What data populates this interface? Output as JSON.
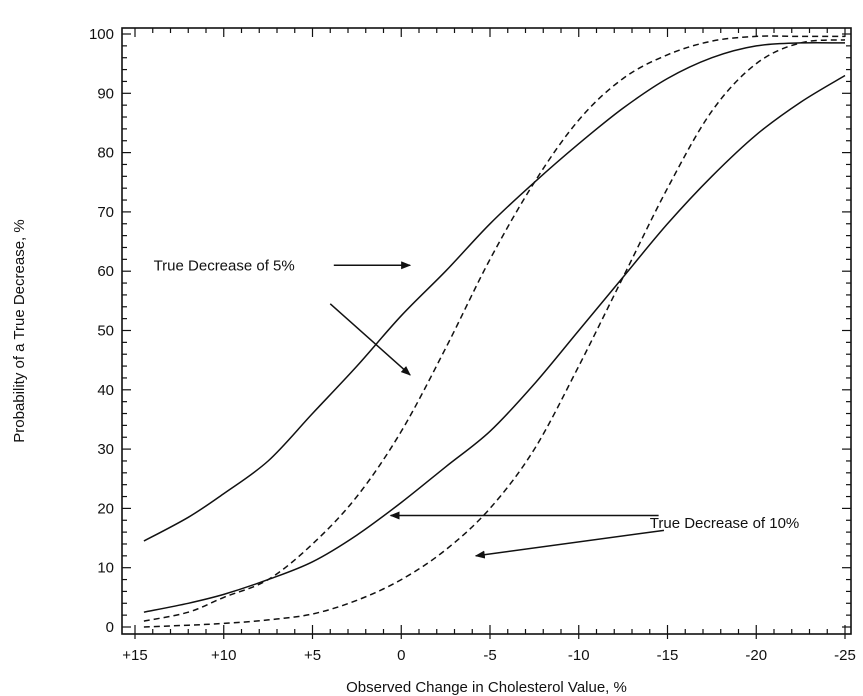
{
  "chart_data": {
    "type": "line",
    "title": "",
    "xlabel": "Observed Change in Cholesterol Value, %",
    "ylabel": "Probability of a True Decrease, %",
    "xlim": [
      15,
      -25
    ],
    "ylim": [
      0,
      100
    ],
    "x_reversed": true,
    "grid": false,
    "legend": "none",
    "xticks": [
      {
        "value": 15,
        "label": "+15"
      },
      {
        "value": 10,
        "label": "+10"
      },
      {
        "value": 5,
        "label": "+5"
      },
      {
        "value": 0,
        "label": "0"
      },
      {
        "value": -5,
        "label": "-5"
      },
      {
        "value": -10,
        "label": "-10"
      },
      {
        "value": -15,
        "label": "-15"
      },
      {
        "value": -20,
        "label": "-20"
      },
      {
        "value": -25,
        "label": "-25"
      }
    ],
    "yticks": [
      0,
      10,
      20,
      30,
      40,
      50,
      60,
      70,
      80,
      90,
      100
    ],
    "series": [
      {
        "style": "solid",
        "x": [
          14.5,
          12,
          10,
          7.5,
          5,
          2.5,
          0,
          -2.5,
          -5,
          -7.5,
          -10,
          -12.5,
          -15,
          -17.5,
          -20,
          -22.5,
          -25
        ],
        "y": [
          14.5,
          18.5,
          22.5,
          28,
          36,
          44,
          52.5,
          60,
          68,
          75,
          81.5,
          87.5,
          92.5,
          96,
          98,
          98.5,
          98.5
        ]
      },
      {
        "style": "dashed",
        "x": [
          14.5,
          12,
          10,
          7.5,
          5,
          2.5,
          0,
          -2.5,
          -5,
          -7.5,
          -10,
          -12.5,
          -15,
          -17.5,
          -20,
          -22.5,
          -25
        ],
        "y": [
          1,
          2.5,
          5,
          8,
          14,
          22,
          33,
          47,
          62,
          75,
          85.5,
          92.5,
          96.5,
          98.8,
          99.6,
          99.6,
          99.6
        ]
      },
      {
        "style": "solid",
        "x": [
          14.5,
          12,
          10,
          7.5,
          5,
          2.5,
          0,
          -2.5,
          -5,
          -7.5,
          -10,
          -12.5,
          -15,
          -17.5,
          -20,
          -22.5,
          -25
        ],
        "y": [
          2.5,
          4,
          5.5,
          8,
          11,
          15.5,
          21,
          27,
          33,
          41,
          50,
          59,
          68,
          76,
          83,
          88.5,
          93
        ]
      },
      {
        "style": "dashed",
        "x": [
          14.5,
          12,
          10,
          7.5,
          5,
          2.5,
          0,
          -2.5,
          -5,
          -7.5,
          -10,
          -12.5,
          -15,
          -17.5,
          -20,
          -22.5,
          -25
        ],
        "y": [
          0,
          0.3,
          0.6,
          1.2,
          2.2,
          4.5,
          8,
          13,
          20,
          30,
          44,
          59,
          74,
          87,
          95,
          98.5,
          99
        ]
      }
    ],
    "annotations": [
      {
        "text": "True Decrease of 5%",
        "at": [
          6,
          61
        ],
        "align": "end",
        "arrows": [
          {
            "from": [
              3.8,
              61
            ],
            "to": [
              -0.5,
              61
            ]
          },
          {
            "from": [
              4.0,
              54.5
            ],
            "to": [
              -0.5,
              42.5
            ]
          }
        ]
      },
      {
        "text": "True Decrease of 10%",
        "at": [
          -14,
          17.5
        ],
        "align": "start",
        "arrows": [
          {
            "from": [
              -14.5,
              18.8
            ],
            "to": [
              0.6,
              18.8
            ]
          },
          {
            "from": [
              -14.8,
              16.3
            ],
            "to": [
              -4.2,
              12
            ]
          }
        ]
      }
    ]
  }
}
